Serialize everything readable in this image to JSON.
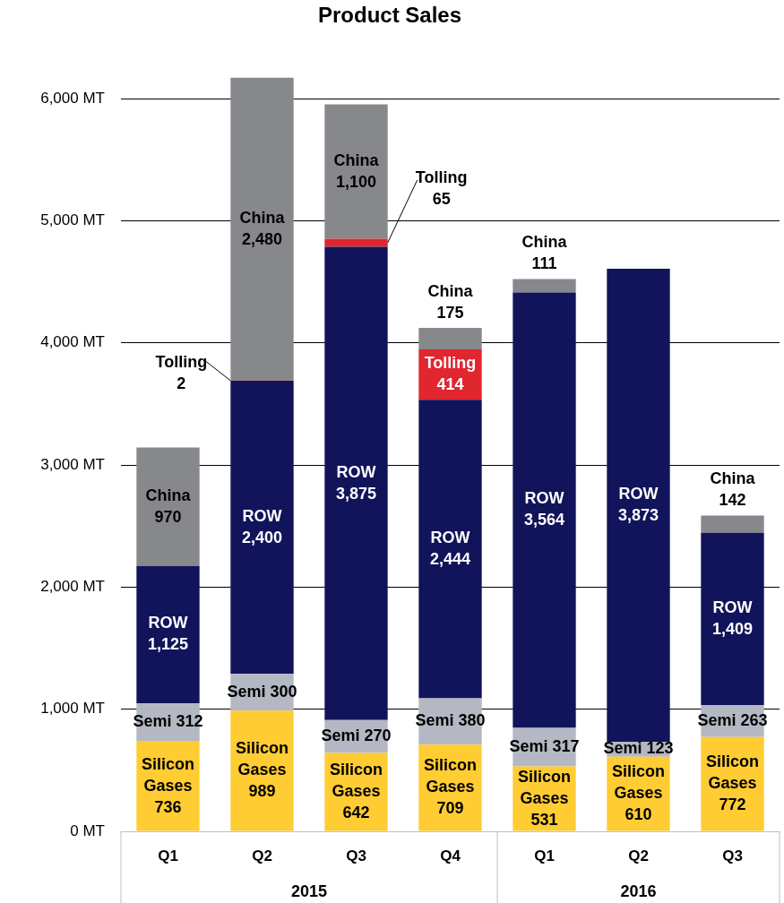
{
  "chart_data": {
    "type": "bar",
    "title": "Product Sales",
    "stacked": true,
    "grid": "y",
    "legend": false,
    "categories": [
      "Q1",
      "Q2",
      "Q3",
      "Q4",
      "Q1",
      "Q2",
      "Q3"
    ],
    "ylim": [
      0,
      6200
    ],
    "yticks": [
      {
        "value": 0,
        "label": "0 MT"
      },
      {
        "value": 1000,
        "label": "1,000 MT"
      },
      {
        "value": 2000,
        "label": "2,000 MT"
      },
      {
        "value": 3000,
        "label": "3,000 MT"
      },
      {
        "value": 4000,
        "label": "4,000 MT"
      },
      {
        "value": 5000,
        "label": "5,000 MT"
      },
      {
        "value": 6000,
        "label": "6,000 MT"
      }
    ],
    "series": [
      {
        "color": "#ffcc33",
        "values": [
          736,
          989,
          642,
          709,
          531,
          610,
          772
        ],
        "value_labels": [
          "Silicon\nGases\n736",
          "Silicon\nGases\n989",
          "Silicon\nGases\n642",
          "Silicon\nGases\n709",
          "Silicon\nGases\n531",
          "Silicon\nGases\n610",
          "Silicon\nGases\n772"
        ]
      },
      {
        "color": "#b4b8c2",
        "values": [
          312,
          300,
          270,
          380,
          317,
          123,
          263
        ],
        "value_labels": [
          "Semi 312",
          "Semi 300",
          "Semi 270",
          "Semi 380",
          "Semi 317",
          "Semi 123",
          "Semi 263"
        ]
      },
      {
        "color": "#11145a",
        "values": [
          1125,
          2400,
          3875,
          2444,
          3564,
          3873,
          1409
        ],
        "value_labels": [
          "ROW\n1,125",
          "ROW\n2,400",
          "ROW\n3,875",
          "ROW\n2,444",
          "ROW\n3,564",
          "ROW\n3,873",
          "ROW\n1,409"
        ]
      },
      {
        "color": "#e0262e",
        "values": [
          null,
          2,
          65,
          414,
          null,
          null,
          null
        ],
        "value_labels": [
          null,
          "Tolling\n2",
          "Tolling\n65",
          "Tolling\n414",
          null,
          null,
          null
        ]
      },
      {
        "color": "#87888c",
        "values": [
          970,
          2480,
          1100,
          175,
          111,
          null,
          142
        ],
        "value_labels": [
          "China\n970",
          "China\n2,480",
          "China\n1,100",
          "China\n175",
          "China\n111",
          null,
          "China\n142"
        ]
      }
    ],
    "annotations": [
      "2015",
      "2016"
    ]
  }
}
